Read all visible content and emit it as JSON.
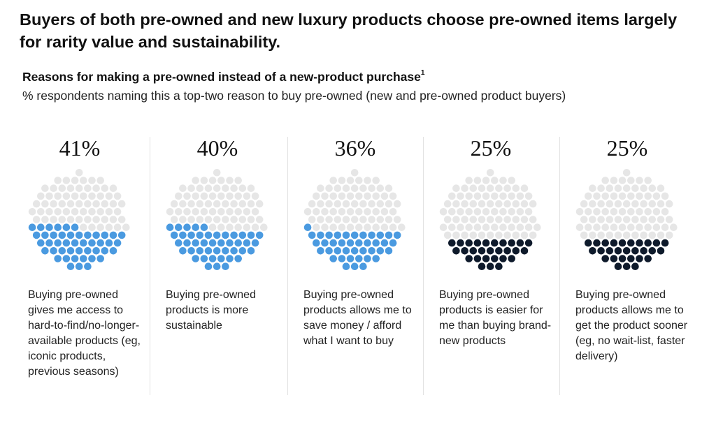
{
  "headline": "Buyers of both pre-owned and new luxury products choose pre-owned items largely for rarity value and sustainability.",
  "subtitle": "Reasons for making a pre-owned instead of a new-product purchase",
  "subtitle_footnote": "1",
  "description": "% respondents naming this a top-two reason to buy pre-owned (new and pre-owned product buyers)",
  "colors": {
    "blue": "#4a9ae0",
    "navy": "#0e1a2b",
    "empty": "#e6e6e6"
  },
  "chart_data": {
    "type": "bar",
    "title": "Reasons for making a pre-owned instead of a new-product purchase",
    "ylabel": "% respondents naming this a top-two reason to buy pre-owned (new and pre-owned product buyers)",
    "categories": [
      "Buying pre-owned gives me access to hard-to-find/no-longer-available products (eg, iconic products, previous seasons)",
      "Buying pre-owned products is more sustainable",
      "Buying pre-owned products allows me to save money / afford what I want to buy",
      "Buying pre-owned products is easier for me than buying brand-new products",
      "Buying pre-owned products allows me to get the product sooner (eg, no wait-list, faster delivery)"
    ],
    "values": [
      41,
      40,
      36,
      25,
      25
    ],
    "value_labels": [
      "41%",
      "40%",
      "36%",
      "25%",
      "25%"
    ],
    "fill_colors": [
      "blue",
      "blue",
      "blue",
      "navy",
      "navy"
    ],
    "ylim": [
      0,
      100
    ]
  }
}
